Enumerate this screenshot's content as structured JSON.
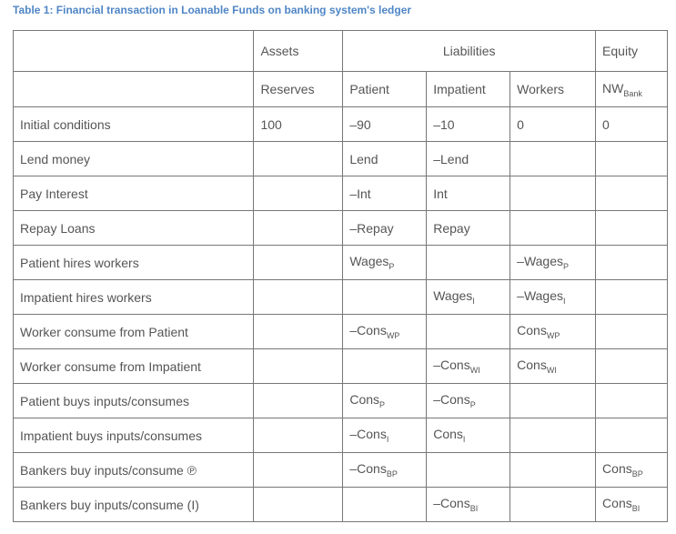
{
  "title": "Table 1: Financial transaction in Loanable Funds on banking system's ledger",
  "header_groups": {
    "assets": "Assets",
    "liabilities": "Liabilities",
    "equity": "Equity"
  },
  "columns": [
    {
      "main": "Reserves",
      "sub": ""
    },
    {
      "main": "Patient",
      "sub": ""
    },
    {
      "main": "Impatient",
      "sub": ""
    },
    {
      "main": "Workers",
      "sub": ""
    },
    {
      "main": "NW",
      "sub": "Bank"
    }
  ],
  "rows": [
    {
      "label": "Initial conditions",
      "cells": [
        {
          "main": "100",
          "sub": ""
        },
        {
          "main": "–90",
          "sub": ""
        },
        {
          "main": "–10",
          "sub": ""
        },
        {
          "main": "0",
          "sub": ""
        },
        {
          "main": "0",
          "sub": ""
        }
      ]
    },
    {
      "label": "Lend money",
      "cells": [
        {
          "main": "",
          "sub": ""
        },
        {
          "main": "Lend",
          "sub": ""
        },
        {
          "main": "–Lend",
          "sub": ""
        },
        {
          "main": "",
          "sub": ""
        },
        {
          "main": "",
          "sub": ""
        }
      ]
    },
    {
      "label": "Pay Interest",
      "cells": [
        {
          "main": "",
          "sub": ""
        },
        {
          "main": "–Int",
          "sub": ""
        },
        {
          "main": "Int",
          "sub": ""
        },
        {
          "main": "",
          "sub": ""
        },
        {
          "main": "",
          "sub": ""
        }
      ]
    },
    {
      "label": "Repay Loans",
      "cells": [
        {
          "main": "",
          "sub": ""
        },
        {
          "main": "–Repay",
          "sub": ""
        },
        {
          "main": "Repay",
          "sub": ""
        },
        {
          "main": "",
          "sub": ""
        },
        {
          "main": "",
          "sub": ""
        }
      ]
    },
    {
      "label": "Patient hires workers",
      "cells": [
        {
          "main": "",
          "sub": ""
        },
        {
          "main": "Wages",
          "sub": "P"
        },
        {
          "main": "",
          "sub": ""
        },
        {
          "main": "–Wages",
          "sub": "P"
        },
        {
          "main": "",
          "sub": ""
        }
      ]
    },
    {
      "label": "Impatient hires workers",
      "cells": [
        {
          "main": "",
          "sub": ""
        },
        {
          "main": "",
          "sub": ""
        },
        {
          "main": "Wages",
          "sub": "I"
        },
        {
          "main": "–Wages",
          "sub": "I"
        },
        {
          "main": "",
          "sub": ""
        }
      ]
    },
    {
      "label": "Worker consume from Patient",
      "cells": [
        {
          "main": "",
          "sub": ""
        },
        {
          "main": "–Cons",
          "sub": "WP"
        },
        {
          "main": "",
          "sub": ""
        },
        {
          "main": "Cons",
          "sub": "WP"
        },
        {
          "main": "",
          "sub": ""
        }
      ]
    },
    {
      "label": "Worker consume from Impatient",
      "cells": [
        {
          "main": "",
          "sub": ""
        },
        {
          "main": "",
          "sub": ""
        },
        {
          "main": "–Cons",
          "sub": "WI"
        },
        {
          "main": "Cons",
          "sub": "WI"
        },
        {
          "main": "",
          "sub": ""
        }
      ]
    },
    {
      "label": "Patient buys inputs/consumes",
      "cells": [
        {
          "main": "",
          "sub": ""
        },
        {
          "main": "Cons",
          "sub": "P"
        },
        {
          "main": "–Cons",
          "sub": "P"
        },
        {
          "main": "",
          "sub": ""
        },
        {
          "main": "",
          "sub": ""
        }
      ]
    },
    {
      "label": "Impatient buys inputs/consumes",
      "cells": [
        {
          "main": "",
          "sub": ""
        },
        {
          "main": "–Cons",
          "sub": "I"
        },
        {
          "main": "Cons",
          "sub": "I"
        },
        {
          "main": "",
          "sub": ""
        },
        {
          "main": "",
          "sub": ""
        }
      ]
    },
    {
      "label": "Bankers buy inputs/consume ℗",
      "cells": [
        {
          "main": "",
          "sub": ""
        },
        {
          "main": "–Cons",
          "sub": "BP"
        },
        {
          "main": "",
          "sub": ""
        },
        {
          "main": "",
          "sub": ""
        },
        {
          "main": "Cons",
          "sub": "BP"
        }
      ]
    },
    {
      "label": "Bankers buy inputs/consume (I)",
      "cells": [
        {
          "main": "",
          "sub": ""
        },
        {
          "main": "",
          "sub": ""
        },
        {
          "main": "–Cons",
          "sub": "BI"
        },
        {
          "main": "",
          "sub": ""
        },
        {
          "main": "Cons",
          "sub": "BI"
        }
      ]
    }
  ]
}
